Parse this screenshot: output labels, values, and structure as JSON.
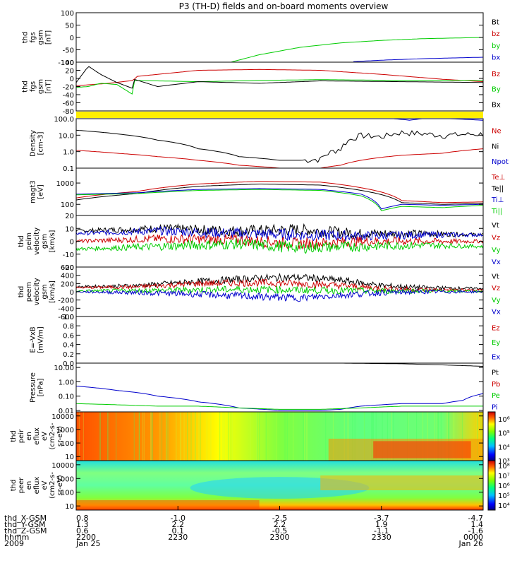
{
  "title": "P3 (TH-D) fields and on-board moments overview",
  "footer": {
    "rows": [
      {
        "label": "thd_X-GSM",
        "values": [
          "0.8",
          "-1.0",
          "-2.5",
          "-3.7",
          "-4.7"
        ]
      },
      {
        "label": "thd_Y-GSM",
        "values": [
          "1.3",
          "2.2",
          "2.2",
          "1.9",
          "1.4"
        ]
      },
      {
        "label": "thd_Z-GSM",
        "values": [
          "0.6",
          "0.1",
          "-0.5",
          "-1.1",
          "-1.6"
        ]
      },
      {
        "label": "hhmm",
        "values": [
          "2200",
          "2230",
          "2300",
          "2330",
          "0000"
        ]
      },
      {
        "label": "2009",
        "values": [
          "Jan 25",
          "",
          "",
          "",
          "Jan 26"
        ]
      }
    ]
  },
  "colors": {
    "black": "#000000",
    "red": "#cc0000",
    "green": "#00cc00",
    "blue": "#0000cc",
    "yellow": "#ffee00"
  },
  "chart_data": [
    {
      "type": "line",
      "ylabel": [
        "thd",
        "fgs",
        "gsm",
        "[nT]"
      ],
      "ylim": [
        -100,
        100
      ],
      "yticks": [
        {
          "v": 100,
          "t": "100"
        },
        {
          "v": 50,
          "t": "50"
        },
        {
          "v": 0,
          "t": "0"
        },
        {
          "v": -50,
          "t": "-50"
        },
        {
          "v": -100,
          "t": "-100"
        }
      ],
      "legend": [
        {
          "text": "Bt",
          "color": "#000000"
        },
        {
          "text": "bz",
          "color": "#cc0000"
        },
        {
          "text": "by",
          "color": "#00cc00"
        },
        {
          "text": "bx",
          "color": "#0000cc"
        }
      ],
      "series": [
        {
          "name": "by",
          "color": "#00cc00",
          "x": [
            0.38,
            0.45,
            0.55,
            0.65,
            0.75,
            0.85,
            1.0
          ],
          "y": [
            -100,
            -70,
            -40,
            -22,
            -12,
            -5,
            0
          ]
        },
        {
          "name": "bx",
          "color": "#0000cc",
          "x": [
            0.68,
            0.75,
            0.85,
            1.0
          ],
          "y": [
            -98,
            -92,
            -86,
            -80
          ]
        }
      ]
    },
    {
      "type": "line",
      "ylabel": [
        "thd",
        "fgs",
        "gsm",
        "[nT]"
      ],
      "ylim": [
        -80,
        40
      ],
      "yticks": [
        {
          "v": 40,
          "t": "40"
        },
        {
          "v": 20,
          "t": "20"
        },
        {
          "v": 0,
          "t": "0"
        },
        {
          "v": -20,
          "t": "-20"
        },
        {
          "v": -40,
          "t": "-40"
        },
        {
          "v": -60,
          "t": "-60"
        },
        {
          "v": -80,
          "t": "-80"
        }
      ],
      "legend": [
        {
          "text": "Bz",
          "color": "#cc0000"
        },
        {
          "text": "By",
          "color": "#00cc00"
        },
        {
          "text": "Bx",
          "color": "#000000"
        }
      ],
      "series": [
        {
          "name": "Bz",
          "color": "#cc0000",
          "x": [
            0,
            0.08,
            0.14,
            0.15,
            0.3,
            0.45,
            0.6,
            0.75,
            0.9,
            1.0
          ],
          "y": [
            -18,
            -12,
            -5,
            5,
            20,
            22,
            20,
            10,
            -2,
            -8
          ]
        },
        {
          "name": "By",
          "color": "#00cc00",
          "x": [
            0,
            0.03,
            0.06,
            0.1,
            0.14,
            0.142,
            0.3,
            0.45,
            0.6,
            0.8,
            1.0
          ],
          "y": [
            -22,
            -20,
            -12,
            -15,
            -40,
            -5,
            -8,
            -5,
            -3,
            -5,
            -5
          ]
        },
        {
          "name": "Bx",
          "color": "#000000",
          "x": [
            0,
            0.03,
            0.06,
            0.1,
            0.14,
            0.142,
            0.2,
            0.3,
            0.45,
            0.6,
            0.8,
            1.0
          ],
          "y": [
            -10,
            30,
            10,
            -10,
            -25,
            -2,
            -20,
            -8,
            -12,
            -6,
            -8,
            -10
          ]
        }
      ]
    },
    {
      "type": "band",
      "color": "#ffee00"
    },
    {
      "type": "line",
      "ylabel": [
        "Density",
        "[cm-3]"
      ],
      "scale": "log",
      "ylim": [
        0.1,
        100
      ],
      "yticks": [
        {
          "v": 100,
          "t": "100.0"
        },
        {
          "v": 10,
          "t": "10.0"
        },
        {
          "v": 1,
          "t": "1.0"
        },
        {
          "v": 0.1,
          "t": "0.1"
        }
      ],
      "legend": [
        {
          "text": "Ne",
          "color": "#cc0000"
        },
        {
          "text": "Ni",
          "color": "#000000"
        },
        {
          "text": "Npot",
          "color": "#0000cc"
        }
      ],
      "series": [
        {
          "name": "Ni",
          "color": "#000000",
          "x": [
            0,
            0.1,
            0.2,
            0.3,
            0.4,
            0.5,
            0.55,
            0.6,
            0.65,
            0.7,
            0.75,
            0.8,
            0.9,
            1.0
          ],
          "y": [
            20,
            12,
            5,
            1.5,
            0.5,
            0.3,
            0.3,
            0.35,
            1.5,
            10,
            8,
            15,
            10,
            12
          ]
        },
        {
          "name": "Ne",
          "color": "#cc0000",
          "x": [
            0,
            0.1,
            0.2,
            0.3,
            0.4,
            0.5,
            0.6,
            0.65,
            0.7,
            0.8,
            0.9,
            1.0
          ],
          "y": [
            1.2,
            0.8,
            0.5,
            0.3,
            0.15,
            0.1,
            0.1,
            0.15,
            0.3,
            0.6,
            0.8,
            1.5
          ]
        },
        {
          "name": "Npot",
          "color": "#0000cc",
          "x": [
            0.78,
            0.82,
            0.85,
            0.88,
            0.92,
            1.0
          ],
          "y": [
            100,
            80,
            100,
            120,
            100,
            80
          ]
        }
      ]
    },
    {
      "type": "line",
      "ylabel": [
        "magt3",
        "[eV]"
      ],
      "scale": "log",
      "ylim": [
        30,
        5000
      ],
      "yticks": [
        {
          "v": 1000,
          "t": "1000"
        },
        {
          "v": 100,
          "t": "100"
        }
      ],
      "legend": [
        {
          "text": "Te⊥",
          "color": "#cc0000"
        },
        {
          "text": "Te||",
          "color": "#000000"
        },
        {
          "text": "Ti⊥",
          "color": "#0000cc"
        },
        {
          "text": "Ti||",
          "color": "#00cc00"
        }
      ],
      "series": [
        {
          "name": "Te⊥",
          "color": "#cc0000",
          "x": [
            0,
            0.15,
            0.3,
            0.45,
            0.6,
            0.7,
            0.8,
            0.9,
            1.0
          ],
          "y": [
            200,
            400,
            900,
            1200,
            1100,
            600,
            150,
            120,
            130
          ]
        },
        {
          "name": "Te||",
          "color": "#000000",
          "x": [
            0,
            0.15,
            0.3,
            0.45,
            0.6,
            0.7,
            0.8,
            0.9,
            1.0
          ],
          "y": [
            160,
            320,
            700,
            900,
            800,
            450,
            120,
            100,
            110
          ]
        },
        {
          "name": "Ti⊥",
          "color": "#0000cc",
          "x": [
            0,
            0.15,
            0.3,
            0.45,
            0.6,
            0.7,
            0.75,
            0.8,
            0.9,
            1.0
          ],
          "y": [
            300,
            350,
            500,
            550,
            500,
            300,
            60,
            100,
            90,
            100
          ]
        },
        {
          "name": "Ti||",
          "color": "#00cc00",
          "x": [
            0,
            0.15,
            0.3,
            0.45,
            0.6,
            0.7,
            0.75,
            0.8,
            0.9,
            1.0
          ],
          "y": [
            280,
            320,
            450,
            500,
            450,
            250,
            50,
            80,
            70,
            90
          ]
        }
      ]
    },
    {
      "type": "line",
      "ylabel": [
        "thd",
        "peim",
        "velocity",
        "gsm",
        "[km/s]"
      ],
      "ylim": [
        -20,
        20
      ],
      "yticks": [
        {
          "v": 20,
          "t": "20"
        },
        {
          "v": 10,
          "t": "10"
        },
        {
          "v": 0,
          "t": "0"
        },
        {
          "v": -10,
          "t": "-10"
        },
        {
          "v": -20,
          "t": "-20"
        }
      ],
      "legend": [
        {
          "text": "Vt",
          "color": "#000000"
        },
        {
          "text": "Vz",
          "color": "#cc0000"
        },
        {
          "text": "Vy",
          "color": "#00cc00"
        },
        {
          "text": "Vx",
          "color": "#0000cc"
        }
      ],
      "series": [
        {
          "name": "Vt",
          "color": "#000000",
          "x": [
            0,
            0.2,
            0.4,
            0.55,
            0.7,
            0.85,
            1.0
          ],
          "y": [
            8,
            10,
            8,
            9,
            6,
            6,
            5
          ]
        },
        {
          "name": "Vx",
          "color": "#0000cc",
          "x": [
            0,
            0.2,
            0.4,
            0.55,
            0.7,
            0.85,
            1.0
          ],
          "y": [
            6,
            8,
            6,
            5,
            4,
            5,
            5
          ]
        },
        {
          "name": "Vz",
          "color": "#cc0000",
          "x": [
            0,
            0.2,
            0.4,
            0.55,
            0.7,
            0.85,
            1.0
          ],
          "y": [
            0,
            2,
            1,
            -2,
            0,
            0,
            0
          ]
        },
        {
          "name": "Vy",
          "color": "#00cc00",
          "x": [
            0,
            0.2,
            0.4,
            0.55,
            0.7,
            0.85,
            1.0
          ],
          "y": [
            -6,
            -4,
            -2,
            -5,
            -4,
            -3,
            -4
          ]
        }
      ]
    },
    {
      "type": "line",
      "ylabel": [
        "thd",
        "peem",
        "velocity",
        "gsm",
        "[km/s]"
      ],
      "ylim": [
        -600,
        600
      ],
      "yticks": [
        {
          "v": 600,
          "t": "600"
        },
        {
          "v": 400,
          "t": "400"
        },
        {
          "v": 200,
          "t": "200"
        },
        {
          "v": 0,
          "t": "0"
        },
        {
          "v": -200,
          "t": "-200"
        },
        {
          "v": -400,
          "t": "-400"
        },
        {
          "v": -600,
          "t": "-600"
        }
      ],
      "legend": [
        {
          "text": "Vt",
          "color": "#000000"
        },
        {
          "text": "Vz",
          "color": "#cc0000"
        },
        {
          "text": "Vy",
          "color": "#00cc00"
        },
        {
          "text": "Vx",
          "color": "#0000cc"
        }
      ],
      "series": [
        {
          "name": "Vt",
          "color": "#000000",
          "x": [
            0,
            0.15,
            0.3,
            0.45,
            0.55,
            0.65,
            0.75,
            0.85,
            1.0
          ],
          "y": [
            120,
            150,
            250,
            330,
            350,
            280,
            150,
            100,
            80
          ]
        },
        {
          "name": "Vz",
          "color": "#cc0000",
          "x": [
            0,
            0.15,
            0.3,
            0.45,
            0.55,
            0.65,
            0.75,
            0.85,
            1.0
          ],
          "y": [
            100,
            120,
            200,
            220,
            200,
            150,
            80,
            50,
            40
          ]
        },
        {
          "name": "Vy",
          "color": "#00cc00",
          "x": [
            0,
            0.15,
            0.3,
            0.45,
            0.55,
            0.65,
            0.75,
            0.85,
            1.0
          ],
          "y": [
            20,
            30,
            50,
            60,
            40,
            30,
            20,
            20,
            10
          ]
        },
        {
          "name": "Vx",
          "color": "#0000cc",
          "x": [
            0,
            0.15,
            0.3,
            0.45,
            0.55,
            0.65,
            0.75,
            0.85,
            1.0
          ],
          "y": [
            0,
            -20,
            -60,
            -120,
            -150,
            -80,
            -20,
            0,
            0
          ]
        }
      ]
    },
    {
      "type": "line",
      "ylabel": [
        "E=-VxB",
        "[mV/m]"
      ],
      "ylim": [
        0,
        1
      ],
      "yticks": [
        {
          "v": 1.0,
          "t": "1.0"
        },
        {
          "v": 0.8,
          "t": "0.8"
        },
        {
          "v": 0.6,
          "t": "0.6"
        },
        {
          "v": 0.4,
          "t": "0.4"
        },
        {
          "v": 0.2,
          "t": "0.2"
        },
        {
          "v": 0.0,
          "t": "0.0"
        }
      ],
      "legend": [
        {
          "text": "Ez",
          "color": "#cc0000"
        },
        {
          "text": "Ey",
          "color": "#00cc00"
        },
        {
          "text": "Ex",
          "color": "#0000cc"
        }
      ],
      "series": []
    },
    {
      "type": "line",
      "ylabel": [
        "Pressure",
        "[nPa]"
      ],
      "scale": "log",
      "ylim": [
        0.008,
        20
      ],
      "yticks": [
        {
          "v": 10,
          "t": "10.00"
        },
        {
          "v": 1,
          "t": "1.00"
        },
        {
          "v": 0.1,
          "t": "0.10"
        },
        {
          "v": 0.01,
          "t": "0.01"
        }
      ],
      "legend": [
        {
          "text": "Pt",
          "color": "#000000"
        },
        {
          "text": "Pb",
          "color": "#cc0000"
        },
        {
          "text": "Pe",
          "color": "#00cc00"
        },
        {
          "text": "Pi",
          "color": "#0000cc"
        }
      ],
      "series": [
        {
          "name": "Pi",
          "color": "#0000cc",
          "x": [
            0,
            0.1,
            0.2,
            0.3,
            0.4,
            0.5,
            0.6,
            0.65,
            0.7,
            0.8,
            0.9,
            0.95,
            1.0
          ],
          "y": [
            0.5,
            0.25,
            0.1,
            0.04,
            0.015,
            0.01,
            0.01,
            0.012,
            0.02,
            0.03,
            0.03,
            0.05,
            0.15
          ]
        },
        {
          "name": "Pe",
          "color": "#00cc00",
          "x": [
            0,
            0.1,
            0.2,
            0.3,
            0.4,
            0.5,
            0.6,
            0.7,
            0.8,
            0.9,
            1.0
          ],
          "y": [
            0.03,
            0.025,
            0.02,
            0.02,
            0.015,
            0.012,
            0.012,
            0.015,
            0.02,
            0.02,
            0.02
          ]
        },
        {
          "name": "Pt",
          "color": "#000000",
          "x": [
            0.65,
            0.8,
            0.9,
            1.0
          ],
          "y": [
            20,
            18,
            15,
            12
          ]
        }
      ]
    },
    {
      "type": "heatmap",
      "ylabel": [
        "thd",
        "peir",
        "en",
        "eflux",
        "eV",
        "(cm2-s-",
        "sr-eV)"
      ],
      "scale": "log",
      "ylim": [
        5,
        20000
      ],
      "yticks": [
        {
          "v": 10000,
          "t": "10000"
        },
        {
          "v": 1000,
          "t": "1000"
        },
        {
          "v": 100,
          "t": "100"
        },
        {
          "v": 10,
          "t": "10"
        }
      ],
      "colorbar_ticks": [
        {
          "exp": 6,
          "t": "10⁶"
        },
        {
          "exp": 5,
          "t": "10⁵"
        },
        {
          "exp": 4,
          "t": "10⁴"
        },
        {
          "exp": 3,
          "t": "10³"
        }
      ],
      "colorbar_range": [
        3,
        6.5
      ]
    },
    {
      "type": "heatmap",
      "ylabel": [
        "thd",
        "peer",
        "en",
        "eflux",
        "eV",
        "(cm2-s-",
        "sr-eV)"
      ],
      "scale": "log",
      "ylim": [
        5,
        20000
      ],
      "yticks": [
        {
          "v": 10000,
          "t": "10000"
        },
        {
          "v": 1000,
          "t": "1000"
        },
        {
          "v": 100,
          "t": "100"
        },
        {
          "v": 10,
          "t": "10"
        }
      ],
      "colorbar_ticks": [
        {
          "exp": 8,
          "t": "10⁸"
        },
        {
          "exp": 7,
          "t": "10⁷"
        },
        {
          "exp": 6,
          "t": "10⁶"
        },
        {
          "exp": 5,
          "t": "10⁵"
        },
        {
          "exp": 4,
          "t": "10⁴"
        }
      ],
      "colorbar_range": [
        3.5,
        8.5
      ]
    }
  ]
}
